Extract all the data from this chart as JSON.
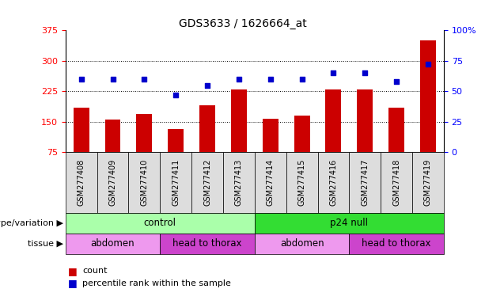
{
  "title": "GDS3633 / 1626664_at",
  "samples": [
    "GSM277408",
    "GSM277409",
    "GSM277410",
    "GSM277411",
    "GSM277412",
    "GSM277413",
    "GSM277414",
    "GSM277415",
    "GSM277416",
    "GSM277417",
    "GSM277418",
    "GSM277419"
  ],
  "counts": [
    185,
    155,
    168,
    132,
    190,
    230,
    158,
    165,
    230,
    230,
    185,
    350
  ],
  "percentiles": [
    60,
    60,
    60,
    47,
    55,
    60,
    60,
    60,
    65,
    65,
    58,
    72
  ],
  "ylim_left": [
    75,
    375
  ],
  "ylim_right": [
    0,
    100
  ],
  "yticks_left": [
    75,
    150,
    225,
    300,
    375
  ],
  "yticks_right": [
    0,
    25,
    50,
    75,
    100
  ],
  "ytick_labels_right": [
    "0",
    "25",
    "50",
    "75",
    "100%"
  ],
  "bar_color": "#cc0000",
  "dot_color": "#0000cc",
  "bar_width": 0.5,
  "genotype_groups": [
    {
      "label": "control",
      "start": 0,
      "end": 6,
      "color": "#aaffaa"
    },
    {
      "label": "p24 null",
      "start": 6,
      "end": 12,
      "color": "#33dd33"
    }
  ],
  "tissue_groups": [
    {
      "label": "abdomen",
      "start": 0,
      "end": 3,
      "color": "#ee99ee"
    },
    {
      "label": "head to thorax",
      "start": 3,
      "end": 6,
      "color": "#cc44cc"
    },
    {
      "label": "abdomen",
      "start": 6,
      "end": 9,
      "color": "#ee99ee"
    },
    {
      "label": "head to thorax",
      "start": 9,
      "end": 12,
      "color": "#cc44cc"
    }
  ],
  "legend_count_label": "count",
  "legend_pct_label": "percentile rank within the sample",
  "xlabel_genotype": "genotype/variation",
  "xlabel_tissue": "tissue",
  "sample_label_bg": "#dddddd",
  "sample_label_fontsize": 7,
  "title_fontsize": 10,
  "tick_fontsize": 8,
  "annotation_fontsize": 8.5,
  "row_label_fontsize": 8,
  "legend_fontsize": 8
}
